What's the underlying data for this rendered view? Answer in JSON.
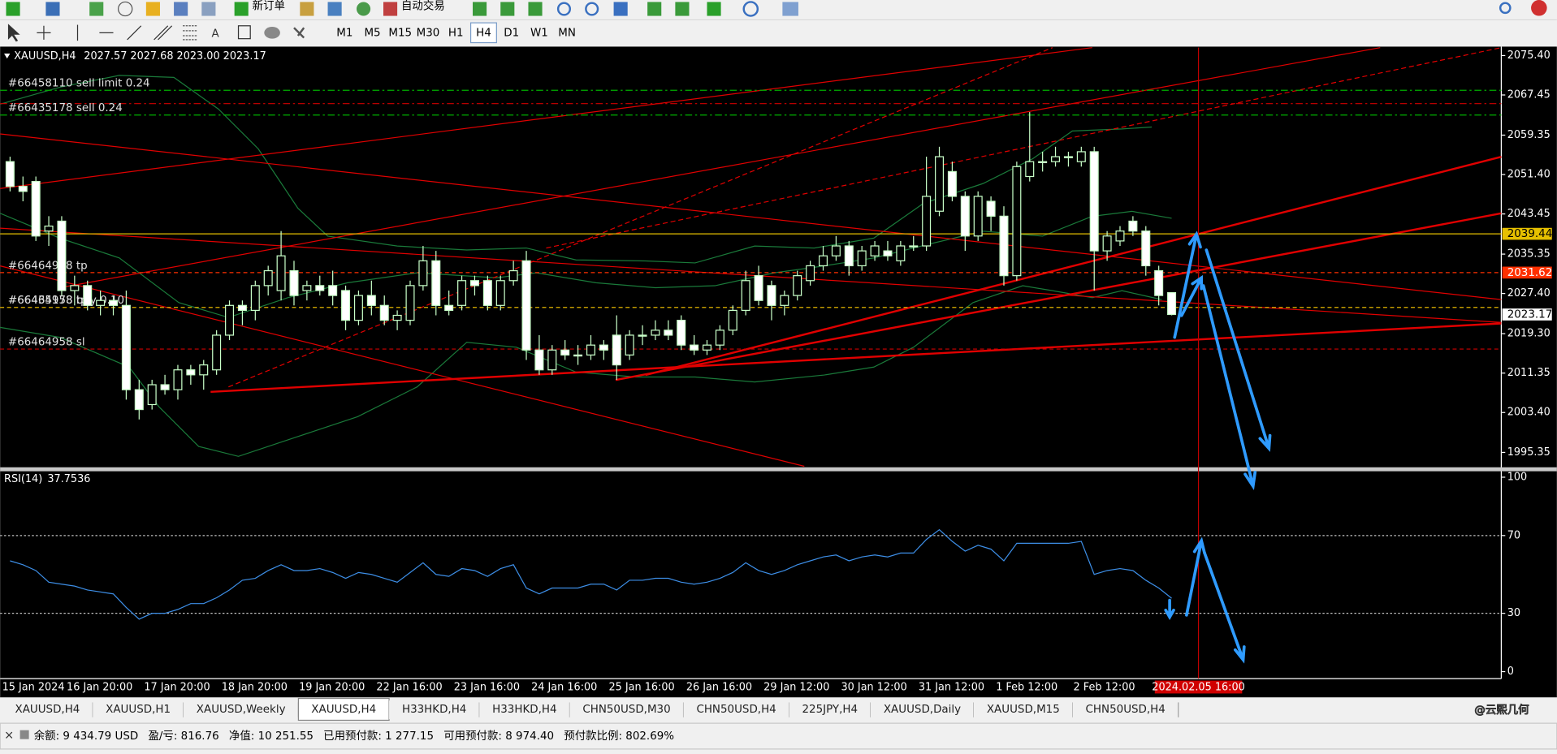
{
  "toolbar": {
    "new_order": "新订单",
    "auto_trading": "自动交易",
    "timeframes": [
      "M1",
      "M5",
      "M15",
      "M30",
      "H1",
      "H4",
      "D1",
      "W1",
      "MN"
    ],
    "active_timeframe": "H4"
  },
  "chart_data": [
    {
      "type": "candlestick",
      "title": "XAUUSD,H4",
      "ohlc_label": "2027.57 2027.68 2023.00 2023.17",
      "bull_color": "#000000",
      "bear_color": "#ffffff",
      "outline_color": "#c8ffc8",
      "ylim": [
        1992.35,
        2077.0
      ],
      "yticks": [
        {
          "value": 2075.4,
          "label": "2075.40"
        },
        2067.45,
        2059.35,
        {
          "value": 2051.4,
          "label": "2051.40"
        },
        2043.45,
        2035.35,
        {
          "value": 2027.4,
          "label": "2027.40"
        },
        {
          "value": 2019.3,
          "label": "2019.30"
        },
        2011.35,
        {
          "value": 2003.4,
          "label": "2003.40"
        },
        1995.35
      ],
      "categories": [
        "15 Jan 2024",
        null,
        null,
        null,
        null,
        "16 Jan 20:00",
        null,
        null,
        null,
        null,
        null,
        "17 Jan 20:00",
        null,
        null,
        null,
        null,
        null,
        "18 Jan 20:00",
        null,
        null,
        null,
        null,
        null,
        "19 Jan 20:00",
        null,
        null,
        null,
        null,
        null,
        "22 Jan 16:00",
        null,
        null,
        null,
        null,
        null,
        "23 Jan 16:00",
        null,
        null,
        null,
        null,
        null,
        "24 Jan 16:00",
        null,
        null,
        null,
        null,
        null,
        "25 Jan 16:00",
        null,
        null,
        null,
        null,
        null,
        "26 Jan 16:00",
        null,
        null,
        null,
        null,
        null,
        "29 Jan 12:00",
        null,
        null,
        null,
        null,
        null,
        "30 Jan 12:00",
        null,
        null,
        null,
        null,
        null,
        "31 Jan 12:00",
        null,
        null,
        null,
        null,
        null,
        "1 Feb 12:00",
        null,
        null,
        null,
        null,
        null,
        "2 Feb 12:00",
        null,
        null,
        null,
        null,
        null,
        null,
        null
      ],
      "cursor_time": "2024.02.05 16:00",
      "candles": [
        [
          2054,
          2055,
          2048,
          2049
        ],
        [
          2049,
          2051,
          2046,
          2048
        ],
        [
          2050,
          2051,
          2038,
          2039
        ],
        [
          2040,
          2043,
          2037,
          2041
        ],
        [
          2042,
          2043,
          2027,
          2028
        ],
        [
          2028,
          2031,
          2025,
          2029
        ],
        [
          2029,
          2030,
          2024,
          2025
        ],
        [
          2025,
          2028,
          2023,
          2026
        ],
        [
          2026,
          2027,
          2023,
          2025
        ],
        [
          2025,
          2028,
          2006,
          2008
        ],
        [
          2008,
          2010,
          2002,
          2004
        ],
        [
          2005,
          2010,
          2004,
          2009
        ],
        [
          2009,
          2011,
          2007,
          2008
        ],
        [
          2008,
          2013,
          2006,
          2012
        ],
        [
          2012,
          2013,
          2009,
          2011
        ],
        [
          2011,
          2014,
          2008,
          2013
        ],
        [
          2012,
          2020,
          2011,
          2019
        ],
        [
          2019,
          2026,
          2018,
          2025
        ],
        [
          2025,
          2026,
          2021,
          2024
        ],
        [
          2024,
          2030,
          2022,
          2029
        ],
        [
          2029,
          2033,
          2027,
          2032
        ],
        [
          2028,
          2040,
          2026,
          2035
        ],
        [
          2032,
          2034,
          2025,
          2027
        ],
        [
          2028,
          2030,
          2026,
          2029
        ],
        [
          2029,
          2031,
          2027,
          2028
        ],
        [
          2029,
          2032,
          2025,
          2027
        ],
        [
          2028,
          2029,
          2020,
          2022
        ],
        [
          2022,
          2028,
          2021,
          2027
        ],
        [
          2027,
          2030,
          2023,
          2025
        ],
        [
          2025,
          2027,
          2021,
          2022
        ],
        [
          2022,
          2024,
          2020,
          2023
        ],
        [
          2022,
          2030,
          2021,
          2029
        ],
        [
          2029,
          2037,
          2028,
          2034
        ],
        [
          2034,
          2036,
          2023,
          2025
        ],
        [
          2025,
          2028,
          2023,
          2024
        ],
        [
          2025,
          2031,
          2024,
          2030
        ],
        [
          2030,
          2031,
          2027,
          2029
        ],
        [
          2030,
          2031,
          2024,
          2025
        ],
        [
          2025,
          2031,
          2024,
          2030
        ],
        [
          2030,
          2034,
          2029,
          2032
        ],
        [
          2034,
          2036,
          2014,
          2016
        ],
        [
          2016,
          2019,
          2011,
          2012
        ],
        [
          2012,
          2017,
          2011,
          2016
        ],
        [
          2016,
          2018,
          2014,
          2015
        ],
        [
          2015,
          2017,
          2013,
          2015
        ],
        [
          2015,
          2019,
          2014,
          2017
        ],
        [
          2017,
          2018,
          2014,
          2016
        ],
        [
          2019,
          2023,
          2010,
          2013
        ],
        [
          2015,
          2020,
          2014,
          2019
        ],
        [
          2019,
          2021,
          2017,
          2019
        ],
        [
          2019,
          2022,
          2018,
          2020
        ],
        [
          2020,
          2022,
          2018,
          2019
        ],
        [
          2022,
          2023,
          2016,
          2017
        ],
        [
          2017,
          2019,
          2015,
          2016
        ],
        [
          2016,
          2018,
          2015,
          2017
        ],
        [
          2017,
          2021,
          2016,
          2020
        ],
        [
          2020,
          2025,
          2019,
          2024
        ],
        [
          2024,
          2032,
          2023,
          2030
        ],
        [
          2031,
          2033,
          2025,
          2026
        ],
        [
          2029,
          2030,
          2022,
          2025
        ],
        [
          2025,
          2028,
          2023,
          2027
        ],
        [
          2027,
          2032,
          2026,
          2031
        ],
        [
          2030,
          2034,
          2029,
          2033
        ],
        [
          2033,
          2037,
          2032,
          2035
        ],
        [
          2035,
          2039,
          2034,
          2037
        ],
        [
          2037,
          2038,
          2031,
          2033
        ],
        [
          2033,
          2037,
          2032,
          2036
        ],
        [
          2035,
          2038,
          2034,
          2037
        ],
        [
          2036,
          2038,
          2034,
          2035
        ],
        [
          2034,
          2038,
          2033,
          2037
        ],
        [
          2037,
          2039,
          2036,
          2037
        ],
        [
          2037,
          2055,
          2036,
          2047
        ],
        [
          2044,
          2057,
          2043,
          2055
        ],
        [
          2052,
          2054,
          2046,
          2047
        ],
        [
          2047,
          2048,
          2036,
          2039
        ],
        [
          2039,
          2048,
          2038,
          2047
        ],
        [
          2046,
          2047,
          2040,
          2043
        ],
        [
          2043,
          2045,
          2029,
          2031
        ],
        [
          2031,
          2054,
          2030,
          2053
        ],
        [
          2051,
          2064,
          2050,
          2054
        ],
        [
          2054,
          2056,
          2052,
          2054
        ],
        [
          2054,
          2057,
          2053,
          2055
        ],
        [
          2055,
          2056,
          2053,
          2055
        ],
        [
          2054,
          2057,
          2053,
          2056
        ],
        [
          2056,
          2057,
          2028,
          2036
        ],
        [
          2036,
          2040,
          2034,
          2039
        ],
        [
          2038,
          2041,
          2037,
          2040
        ],
        [
          2042,
          2043,
          2039,
          2040
        ],
        [
          2040,
          2041,
          2031,
          2033
        ],
        [
          2032,
          2033,
          2025,
          2027
        ],
        [
          2027.57,
          2027.68,
          2023.0,
          2023.17
        ]
      ],
      "current_price": 2023.17,
      "levels": [
        {
          "label": "#66458110 sell limit 0.24",
          "price": 2068.4,
          "color": "#00b000",
          "dash": "dashdot"
        },
        {
          "price": 2065.7,
          "color": "#d00000",
          "dash": "dashdot"
        },
        {
          "label": "#66435178 sell 0.24",
          "price": 2063.4,
          "color": "#00b000",
          "dash": "dashdot"
        },
        {
          "price": 2039.44,
          "color": "#e6c000",
          "dash": "solid",
          "box": true
        },
        {
          "label": "#66464958 tp",
          "price": 2031.62,
          "color": "#ff3000",
          "dash": "dash",
          "box": true
        },
        {
          "label": "#66464958 buy 0.10",
          "price": 2024.6,
          "color": "#c8a000",
          "dash": "dash"
        },
        {
          "label": "#66435178 tp",
          "price": 2024.6,
          "color": "#c8a000",
          "dash": "dash"
        },
        {
          "label": "#66464958 sl",
          "price": 2016.2,
          "color": "#d00000",
          "dash": "dash"
        }
      ]
    },
    {
      "type": "line",
      "title": "RSI(14)",
      "color": "#3d8ee6",
      "ylim": [
        0,
        100
      ],
      "yticks": [
        100,
        70,
        30,
        0
      ],
      "levels": [
        70,
        30
      ],
      "values": [
        57,
        55,
        52,
        46,
        45,
        44,
        42,
        41,
        40,
        33,
        27,
        30,
        30,
        32,
        35,
        35,
        38,
        42,
        47,
        48,
        52,
        55,
        52,
        52,
        53,
        51,
        48,
        51,
        50,
        48,
        46,
        51,
        56,
        50,
        49,
        53,
        52,
        49,
        53,
        55,
        43,
        40,
        43,
        43,
        43,
        45,
        45,
        42,
        47,
        47,
        48,
        48,
        46,
        45,
        46,
        48,
        51,
        56,
        52,
        50,
        52,
        55,
        57,
        59,
        60,
        57,
        59,
        60,
        59,
        61,
        61,
        68,
        73,
        67,
        62,
        65,
        63,
        57,
        66,
        66,
        66,
        66,
        66,
        67,
        50,
        52,
        53,
        52,
        47,
        43,
        37.7536
      ]
    }
  ],
  "tabs": [
    "XAUUSD,H4",
    "XAUUSD,H1",
    "XAUUSD,Weekly",
    "XAUUSD,H4",
    "H33HKD,H4",
    "H33HKD,H4",
    "CHN50USD,M30",
    "CHN50USD,H4",
    "225JPY,H4",
    "XAUUSD,Daily",
    "XAUUSD,M15",
    "CHN50USD,H4"
  ],
  "active_tab": 3,
  "watermark": "@云熙几何",
  "status_bar": [
    "余额: 9 434.79 USD",
    "盈/亏: 816.76",
    "净值: 10 251.55",
    "已用预付款: 1 277.15",
    "可用预付款: 8 974.40",
    "预付款比例: 802.69%"
  ]
}
